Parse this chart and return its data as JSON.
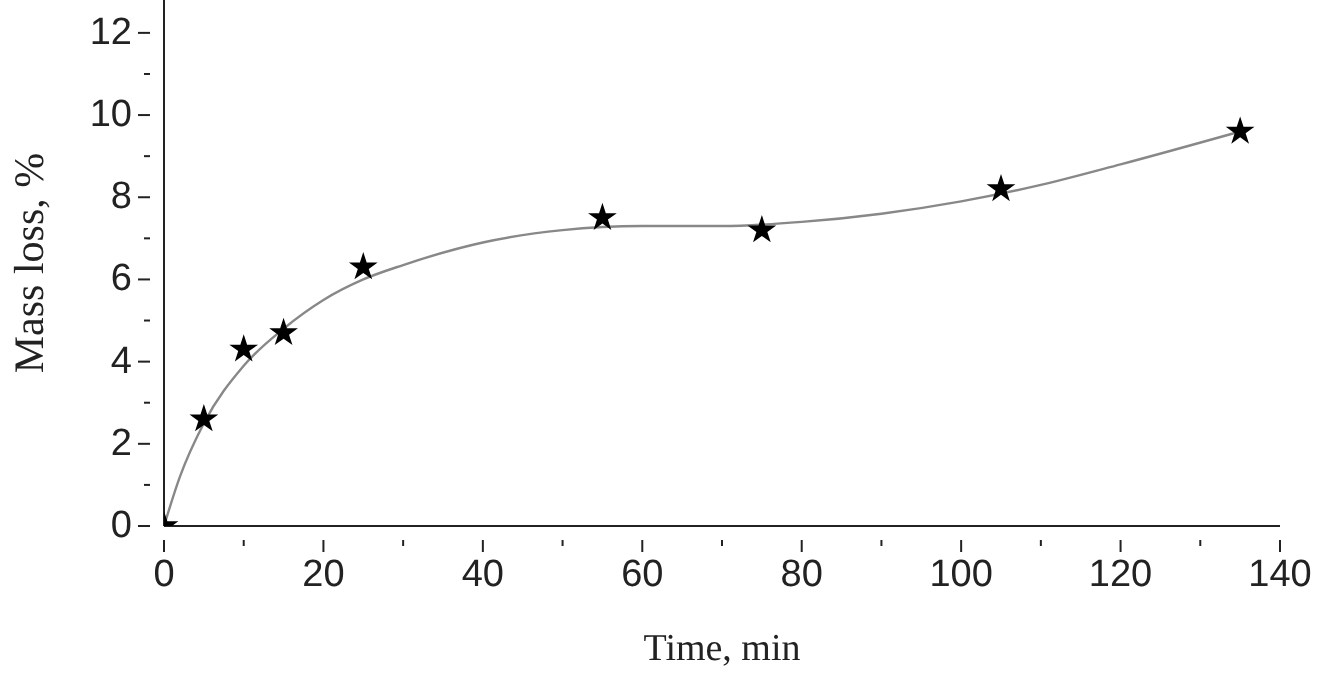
{
  "chart_data": {
    "type": "scatter",
    "xlabel": "Time, min",
    "ylabel": "Mass loss, %",
    "x": [
      0,
      5,
      10,
      15,
      25,
      55,
      75,
      105,
      135
    ],
    "series": [
      {
        "type": "scatter",
        "color": "#000000",
        "marker": "star",
        "values": [
          0,
          2.6,
          4.3,
          4.7,
          6.3,
          7.5,
          7.2,
          8.2,
          9.6
        ]
      },
      {
        "type": "line",
        "color": "#888888",
        "marker": "none",
        "line_style": "solid",
        "x": [
          0,
          2,
          5,
          10,
          15,
          20,
          25,
          30,
          40,
          50,
          60,
          70,
          80,
          90,
          100,
          110,
          120,
          135
        ],
        "values": [
          0,
          1.2,
          2.5,
          3.9,
          4.8,
          5.5,
          6.0,
          6.35,
          6.9,
          7.2,
          7.3,
          7.3,
          7.4,
          7.6,
          7.9,
          8.3,
          8.8,
          9.6
        ]
      }
    ],
    "xlim": [
      0,
      140
    ],
    "xticks": [
      0,
      {
        "value": 10,
        "label": null
      },
      20,
      {
        "value": 30,
        "label": null
      },
      40,
      {
        "value": 50,
        "label": null
      },
      60,
      {
        "value": 70,
        "label": null
      },
      80,
      {
        "value": 90,
        "label": null
      },
      100,
      {
        "value": 110,
        "label": null
      },
      120,
      {
        "value": 130,
        "label": null
      },
      140
    ],
    "ylim": [
      0,
      12.8
    ],
    "yticks": [
      0,
      {
        "value": 1,
        "label": null
      },
      2,
      {
        "value": 3,
        "label": null
      },
      4,
      {
        "value": 5,
        "label": null
      },
      6,
      {
        "value": 7,
        "label": null
      },
      8,
      {
        "value": 9,
        "label": null
      },
      10,
      {
        "value": 11,
        "label": null
      },
      12
    ],
    "grid": false
  }
}
